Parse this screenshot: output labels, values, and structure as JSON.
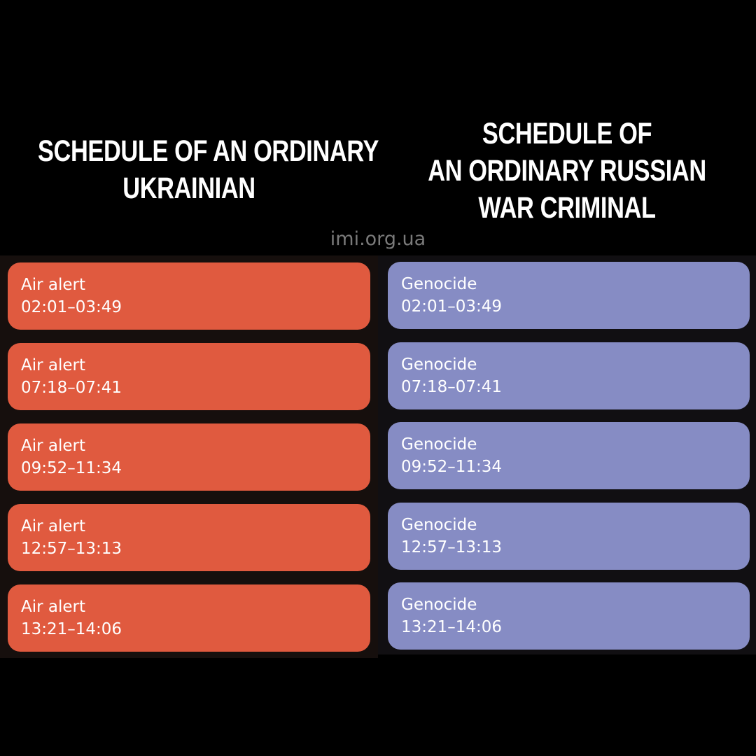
{
  "left": {
    "heading_lines": [
      "SCHEDULE OF AN ORDINARY",
      "UKRAINIAN"
    ],
    "color": "#e05a3f",
    "events": [
      {
        "title": "Air alert",
        "time": "02:01–03:49"
      },
      {
        "title": "Air alert",
        "time": "07:18–07:41"
      },
      {
        "title": "Air alert",
        "time": "09:52–11:34"
      },
      {
        "title": "Air alert",
        "time": "12:57–13:13"
      },
      {
        "title": "Air alert",
        "time": "13:21–14:06"
      }
    ]
  },
  "right": {
    "heading_lines": [
      "SCHEDULE OF",
      "AN ORDINARY RUSSIAN",
      "WAR CRIMINAL"
    ],
    "color": "#868cc4",
    "events": [
      {
        "title": "Genocide",
        "time": "02:01–03:49"
      },
      {
        "title": "Genocide",
        "time": "07:18–07:41"
      },
      {
        "title": "Genocide",
        "time": "09:52–11:34"
      },
      {
        "title": "Genocide",
        "time": "12:57–13:13"
      },
      {
        "title": "Genocide",
        "time": "13:21–14:06"
      }
    ]
  },
  "watermark": "imi.org.ua"
}
